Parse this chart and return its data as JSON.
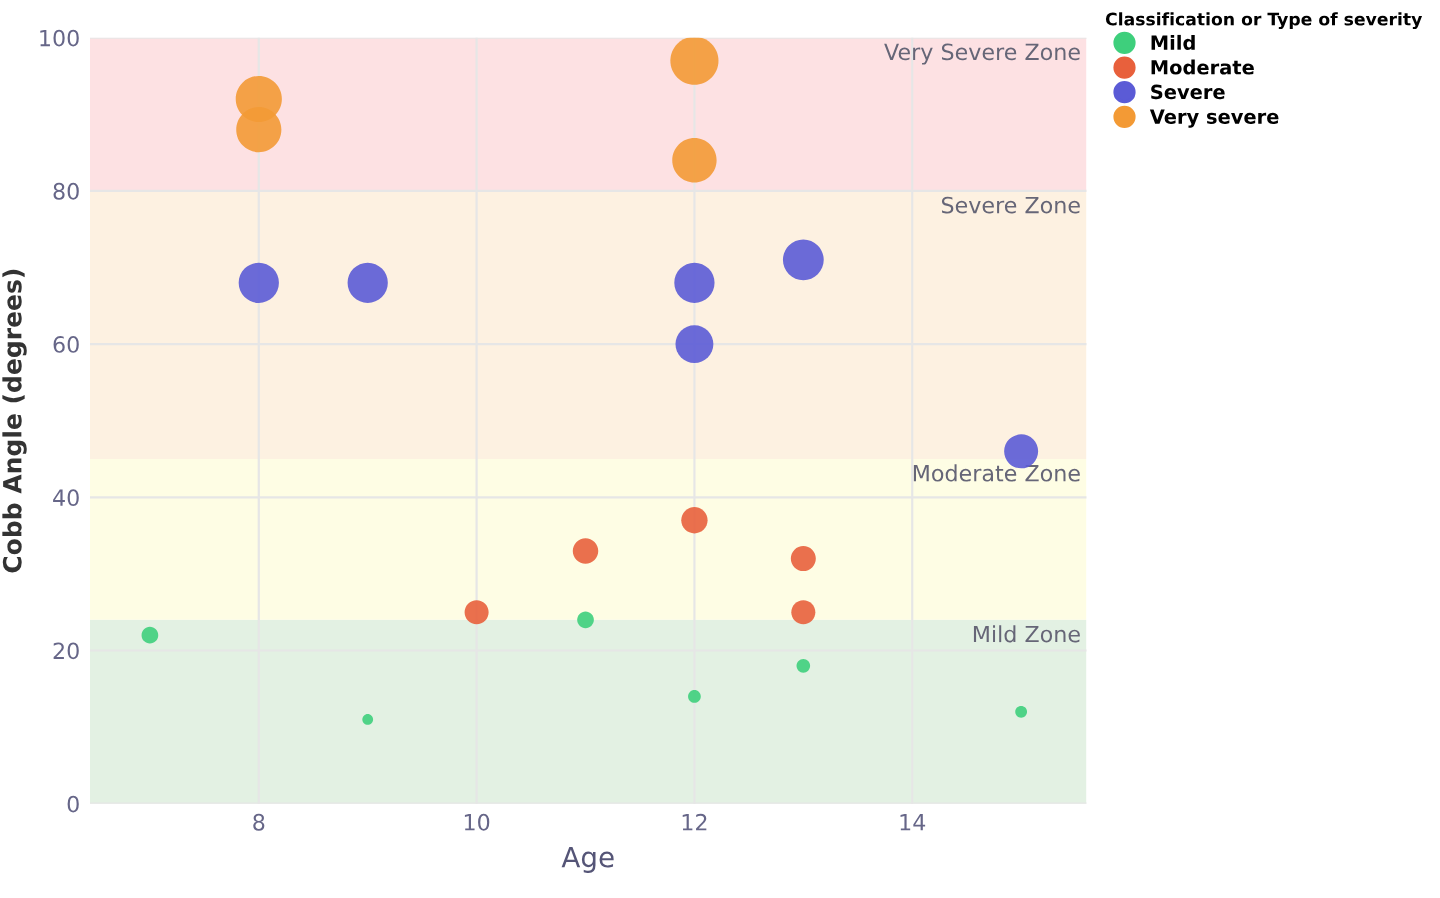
{
  "chart_data": {
    "type": "bubble",
    "xlabel": "Age",
    "ylabel": "Cobb Angle (degrees)",
    "legend_title": "Classification or Type of severity",
    "xlim": [
      6.45,
      15.6
    ],
    "ylim": [
      0,
      100
    ],
    "xticks": [
      8,
      10,
      12,
      14
    ],
    "yticks": [
      0,
      20,
      40,
      60,
      80,
      100
    ],
    "grid": true,
    "legend": "top right",
    "series": [
      {
        "name": "Mild",
        "color": "#3ecf7c",
        "x": [
          7,
          9,
          11,
          12,
          13,
          15
        ],
        "values": [
          22,
          11,
          24,
          14,
          18,
          12
        ],
        "sizes": [
          0.12,
          0.05,
          0.12,
          0.07,
          0.08,
          0.06
        ]
      },
      {
        "name": "Moderate",
        "color": "#e8603c",
        "x": [
          10,
          11,
          12,
          13,
          13
        ],
        "values": [
          25,
          33,
          37,
          32,
          25
        ],
        "sizes": [
          0.25,
          0.28,
          0.3,
          0.27,
          0.25
        ]
      },
      {
        "name": "Severe",
        "color": "#5b5bd6",
        "x": [
          8,
          9,
          12,
          12,
          13,
          15
        ],
        "values": [
          68,
          68,
          68,
          60,
          71,
          46
        ],
        "sizes": [
          0.7,
          0.7,
          0.7,
          0.62,
          0.72,
          0.5
        ]
      },
      {
        "name": "Very severe",
        "color": "#f39a35",
        "x": [
          8,
          8,
          12,
          12
        ],
        "values": [
          92,
          88,
          97,
          84
        ],
        "sizes": [
          0.92,
          0.88,
          1.0,
          0.85
        ]
      }
    ],
    "bands": [
      {
        "axis": "y",
        "from": 0,
        "to": 24,
        "label": "Mild Zone",
        "color": "#e3f1e3"
      },
      {
        "axis": "y",
        "from": 24,
        "to": 45,
        "label": "Moderate Zone",
        "color": "#fefde4"
      },
      {
        "axis": "y",
        "from": 45,
        "to": 80,
        "label": "Severe Zone",
        "color": "#fdf1e1"
      },
      {
        "axis": "y",
        "from": 80,
        "to": 100,
        "label": "Very Severe Zone",
        "color": "#fde1e3"
      }
    ]
  }
}
